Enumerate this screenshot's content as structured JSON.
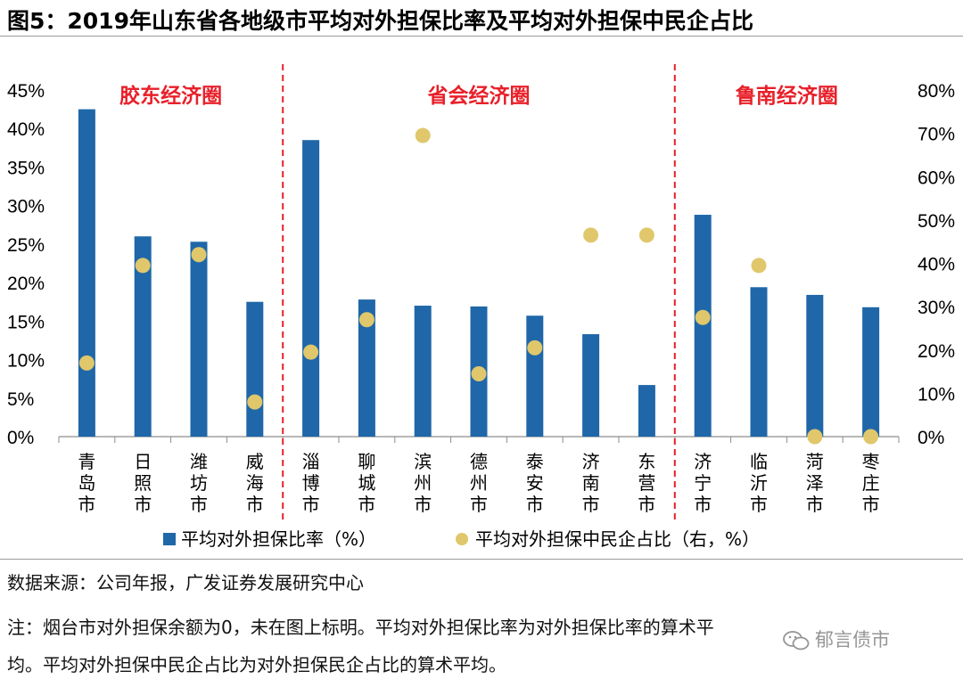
{
  "title": "图5：2019年山东省各地级市平均对外担保比率及平均对外担保中民企占比",
  "chart_data": {
    "type": "bar+scatter",
    "categories": [
      "青岛市",
      "日照市",
      "潍坊市",
      "威海市",
      "淄博市",
      "聊城市",
      "滨州市",
      "德州市",
      "泰安市",
      "济南市",
      "东营市",
      "济宁市",
      "临沂市",
      "菏泽市",
      "枣庄市"
    ],
    "series": [
      {
        "name": "平均对外担保比率（%）",
        "axis": "left",
        "kind": "bar",
        "color": "#1f67a8",
        "values": [
          42.5,
          26.0,
          25.3,
          17.5,
          38.5,
          17.8,
          17.0,
          16.9,
          15.7,
          13.3,
          6.7,
          28.8,
          19.4,
          18.4,
          16.8
        ]
      },
      {
        "name": "平均对外担保中民企占比（右，%）",
        "axis": "right",
        "kind": "scatter",
        "color": "#e0c76b",
        "values": [
          17.0,
          39.5,
          42.0,
          8.0,
          19.5,
          27.0,
          69.5,
          14.5,
          20.5,
          46.5,
          46.5,
          27.5,
          39.5,
          0.0,
          0.0
        ]
      }
    ],
    "left_axis": {
      "min": 0,
      "max": 45,
      "step": 5,
      "ticks": [
        "0%",
        "5%",
        "10%",
        "15%",
        "20%",
        "25%",
        "30%",
        "35%",
        "40%",
        "45%"
      ]
    },
    "right_axis": {
      "min": 0,
      "max": 80,
      "step": 10,
      "ticks": [
        "0%",
        "10%",
        "20%",
        "30%",
        "40%",
        "50%",
        "60%",
        "70%",
        "80%"
      ]
    },
    "regions": [
      {
        "label": "胶东经济圈",
        "from": 0,
        "to": 3
      },
      {
        "label": "省会经济圈",
        "from": 4,
        "to": 10
      },
      {
        "label": "鲁南经济圈",
        "from": 11,
        "to": 14
      }
    ],
    "region_color": "#e8202a",
    "legend": {
      "placement": "bottom",
      "items": [
        "平均对外担保比率（%）",
        "平均对外担保中民企占比（右，%）"
      ]
    }
  },
  "source": "数据来源：公司年报，广发证券发展研究中心",
  "note_line1": "注：烟台市对外担保余额为0，未在图上标明。平均对外担保比率为对外担保比率的算术平",
  "note_line2": "均。平均对外担保中民企占比为对外担保民企占比的算术平均。",
  "watermark": "郁言债市"
}
